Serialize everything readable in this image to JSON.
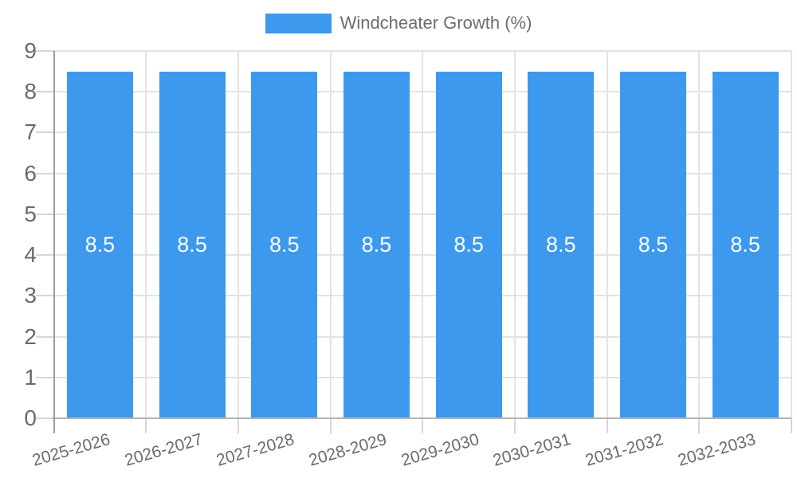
{
  "chart_data": {
    "type": "bar",
    "title": "",
    "legend": {
      "label": "Windcheater Growth (%)",
      "position": "top"
    },
    "categories": [
      "2025-2026",
      "2026-2027",
      "2027-2028",
      "2028-2029",
      "2029-2030",
      "2030-2031",
      "2031-2032",
      "2032-2033"
    ],
    "series": [
      {
        "name": "Windcheater Growth (%)",
        "values": [
          8.5,
          8.5,
          8.5,
          8.5,
          8.5,
          8.5,
          8.5,
          8.5
        ],
        "labels": [
          "8.5",
          "8.5",
          "8.5",
          "8.5",
          "8.5",
          "8.5",
          "8.5",
          "8.5"
        ]
      }
    ],
    "xlabel": "",
    "ylabel": "",
    "ylim": [
      0,
      9
    ],
    "ytick_labels": [
      "0",
      "1",
      "2",
      "3",
      "4",
      "5",
      "6",
      "7",
      "8",
      "9"
    ],
    "grid": true,
    "colors": {
      "bar": "#3c99ee",
      "bar_label": "#ffffff",
      "gridline": "#e3e3e3",
      "tick": "#d6d6d6",
      "axis_x": "#b4b4b4",
      "axis_y": "#9e9e9e",
      "text": "#6d6d6d"
    }
  }
}
